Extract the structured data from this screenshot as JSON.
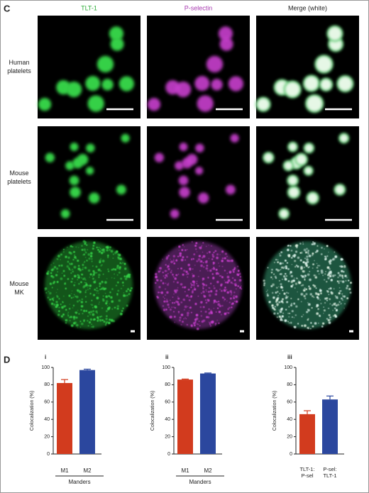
{
  "panel_c": {
    "label": "C",
    "columns": [
      "TLT-1",
      "P-selectin",
      "Merge (white)"
    ],
    "column_colors": [
      "#2fae3a",
      "#a83ab0",
      "#222222"
    ],
    "rows": [
      [
        "Human",
        "platelets"
      ],
      [
        "Mouse",
        "platelets"
      ],
      [
        "Mouse",
        "MK"
      ]
    ]
  },
  "panel_d": {
    "label": "D"
  },
  "chart_data": [
    {
      "type": "bar",
      "sublabel": "i",
      "ylabel": "Colocalization (%)",
      "categories": [
        "M1",
        "M2"
      ],
      "group_label": "Manders",
      "values": [
        82,
        97
      ],
      "errors": [
        4,
        1
      ],
      "colors": [
        "#d23b1e",
        "#2b479e"
      ],
      "ylim": [
        0,
        100
      ],
      "yticks": [
        0,
        20,
        40,
        60,
        80,
        100
      ]
    },
    {
      "type": "bar",
      "sublabel": "ii",
      "ylabel": "Colocalization (%)",
      "categories": [
        "M1",
        "M2"
      ],
      "group_label": "Manders",
      "values": [
        86,
        93
      ],
      "errors": [
        0.6,
        0.6
      ],
      "colors": [
        "#d23b1e",
        "#2b479e"
      ],
      "ylim": [
        0,
        100
      ],
      "yticks": [
        0,
        20,
        40,
        60,
        80,
        100
      ]
    },
    {
      "type": "bar",
      "sublabel": "iii",
      "ylabel": "Colocalization (%)",
      "categories": [
        [
          "TLT-1:",
          "P-sel"
        ],
        [
          "P-sel:",
          "TLT-1"
        ]
      ],
      "values": [
        46,
        63
      ],
      "errors": [
        4,
        4
      ],
      "colors": [
        "#d23b1e",
        "#2b479e"
      ],
      "ylim": [
        0,
        100
      ],
      "yticks": [
        0,
        20,
        40,
        60,
        80,
        100
      ]
    }
  ]
}
